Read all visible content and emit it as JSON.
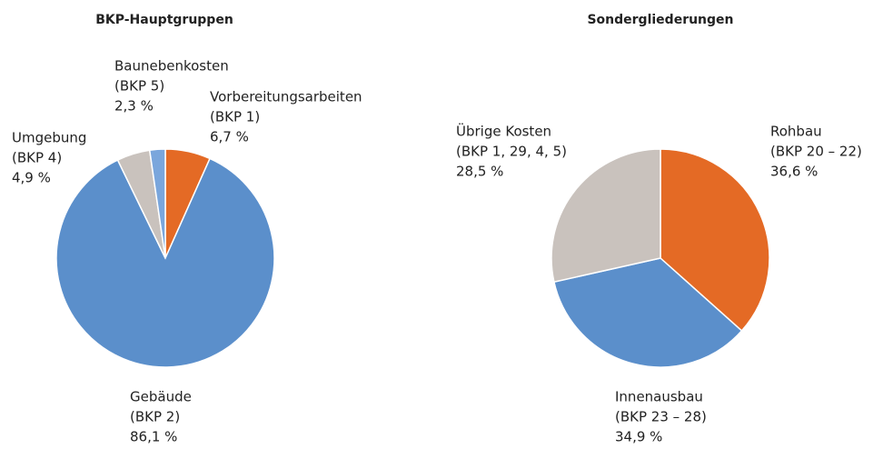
{
  "chart_data": [
    {
      "type": "pie",
      "title": "BKP-Hauptgruppen",
      "categories": [
        [
          "Vorbereitungsarbeiten",
          "(BKP 1)"
        ],
        [
          "Gebäude",
          "(BKP 2)"
        ],
        [
          "Umgebung",
          "(BKP 4)"
        ],
        [
          "Baunebenkosten",
          "(BKP 5)"
        ]
      ],
      "values": [
        6.7,
        86.1,
        4.9,
        2.3
      ],
      "value_labels": [
        "6,7 %",
        "86,1 %",
        "4,9 %",
        "2,3 %"
      ],
      "colors": [
        "#e46a25",
        "#5b8fcb",
        "#c9c2bd",
        "#7aa6dc"
      ]
    },
    {
      "type": "pie",
      "title": "Sondergliederungen",
      "categories": [
        [
          "Rohbau",
          "(BKP 20 – 22)"
        ],
        [
          "Innenausbau",
          "(BKP 23 – 28)"
        ],
        [
          "Übrige Kosten",
          "(BKP 1, 29, 4, 5)"
        ]
      ],
      "values": [
        36.6,
        34.9,
        28.5
      ],
      "value_labels": [
        "36,6 %",
        "34,9 %",
        "28,5 %"
      ],
      "colors": [
        "#e46a25",
        "#5b8fcb",
        "#c9c2bd"
      ]
    }
  ]
}
